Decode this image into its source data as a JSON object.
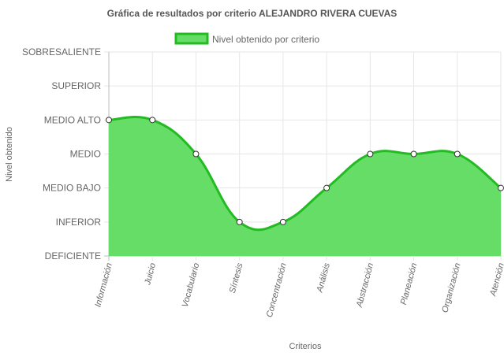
{
  "chart_data": {
    "type": "area",
    "title": "Gráfica de resultados por criterio ALEJANDRO RIVERA CUEVAS",
    "xlabel": "Criterios",
    "ylabel": "Nivel obtenido",
    "y_levels": [
      "DEFICIENTE",
      "INFERIOR",
      "MEDIO BAJO",
      "MEDIO",
      "MEDIO ALTO",
      "SUPERIOR",
      "SOBRESALIENTE"
    ],
    "categories": [
      "Información",
      "Juicio",
      "Vocabulario",
      "Síntesis",
      "Concentración",
      "Análisis",
      "Abstracción",
      "Planeación",
      "Organización",
      "Atención"
    ],
    "series": [
      {
        "name": "Nivel obtenido por criterio",
        "values": [
          4,
          4,
          3,
          1,
          1,
          2,
          3,
          3,
          3,
          2
        ],
        "fill_color": "#66dd66",
        "line_color": "#22bb22"
      }
    ],
    "legend_position": "top",
    "grid": true
  }
}
